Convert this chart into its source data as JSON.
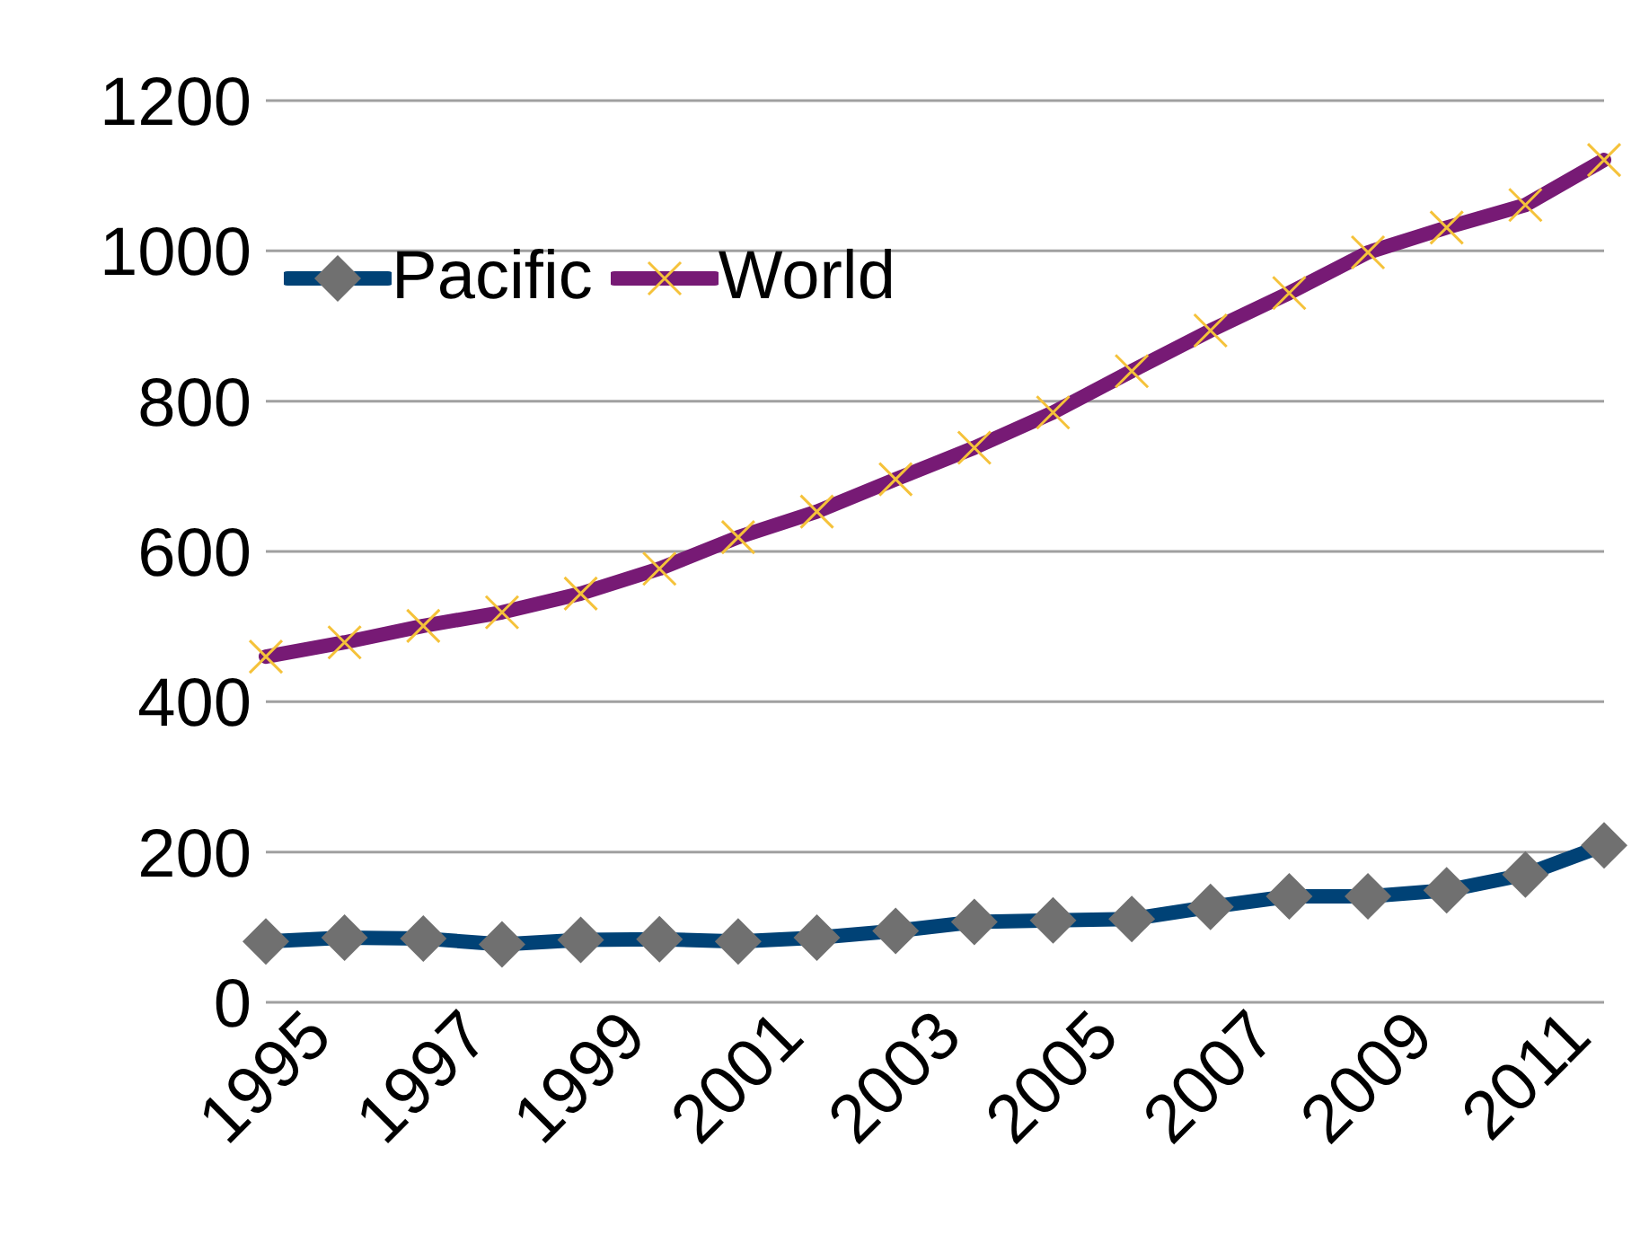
{
  "chart_data": {
    "type": "line",
    "categories": [
      "1995",
      null,
      "1997",
      null,
      "1999",
      null,
      "2001",
      null,
      "2003",
      null,
      "2005",
      null,
      "2007",
      null,
      "2009",
      null,
      "2011",
      null
    ],
    "series": [
      {
        "name": "Pacific",
        "color": "#004276",
        "marker": "diamond",
        "values": [
          81,
          86,
          85,
          77,
          83,
          84,
          81,
          86,
          95,
          107,
          109,
          111,
          127,
          141,
          141,
          149,
          170,
          209
        ]
      },
      {
        "name": "World",
        "color": "#771a75",
        "marker": "cross",
        "values": [
          460,
          479,
          501,
          519,
          544,
          577,
          619,
          653,
          696,
          738,
          785,
          840,
          894,
          944,
          998,
          1031,
          1061,
          1121
        ]
      }
    ],
    "ylim": [
      0,
      1200
    ],
    "yticks": [
      0,
      200,
      400,
      600,
      800,
      1000,
      1200
    ],
    "grid": "y",
    "legend": "top left"
  }
}
